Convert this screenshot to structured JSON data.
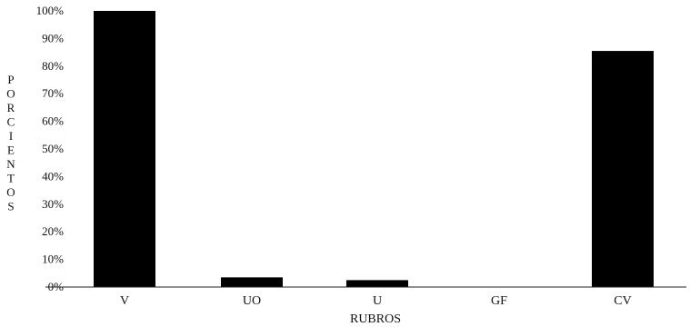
{
  "chart_data": {
    "type": "bar",
    "categories": [
      "V",
      "UO",
      "U",
      "GF",
      "CV"
    ],
    "values": [
      100,
      3.5,
      2.5,
      0,
      85.5
    ],
    "xlabel": "RUBROS",
    "ylabel": "PORCIENTOS",
    "ylim": [
      0,
      100
    ],
    "yticks": [
      0,
      10,
      20,
      30,
      40,
      50,
      60,
      70,
      80,
      90,
      100
    ],
    "ytick_labels": [
      "0%",
      "10%",
      "20%",
      "30%",
      "40%",
      "50%",
      "60%",
      "70%",
      "80%",
      "90%",
      "100%"
    ],
    "grid": false,
    "bar_color": "#000000"
  }
}
